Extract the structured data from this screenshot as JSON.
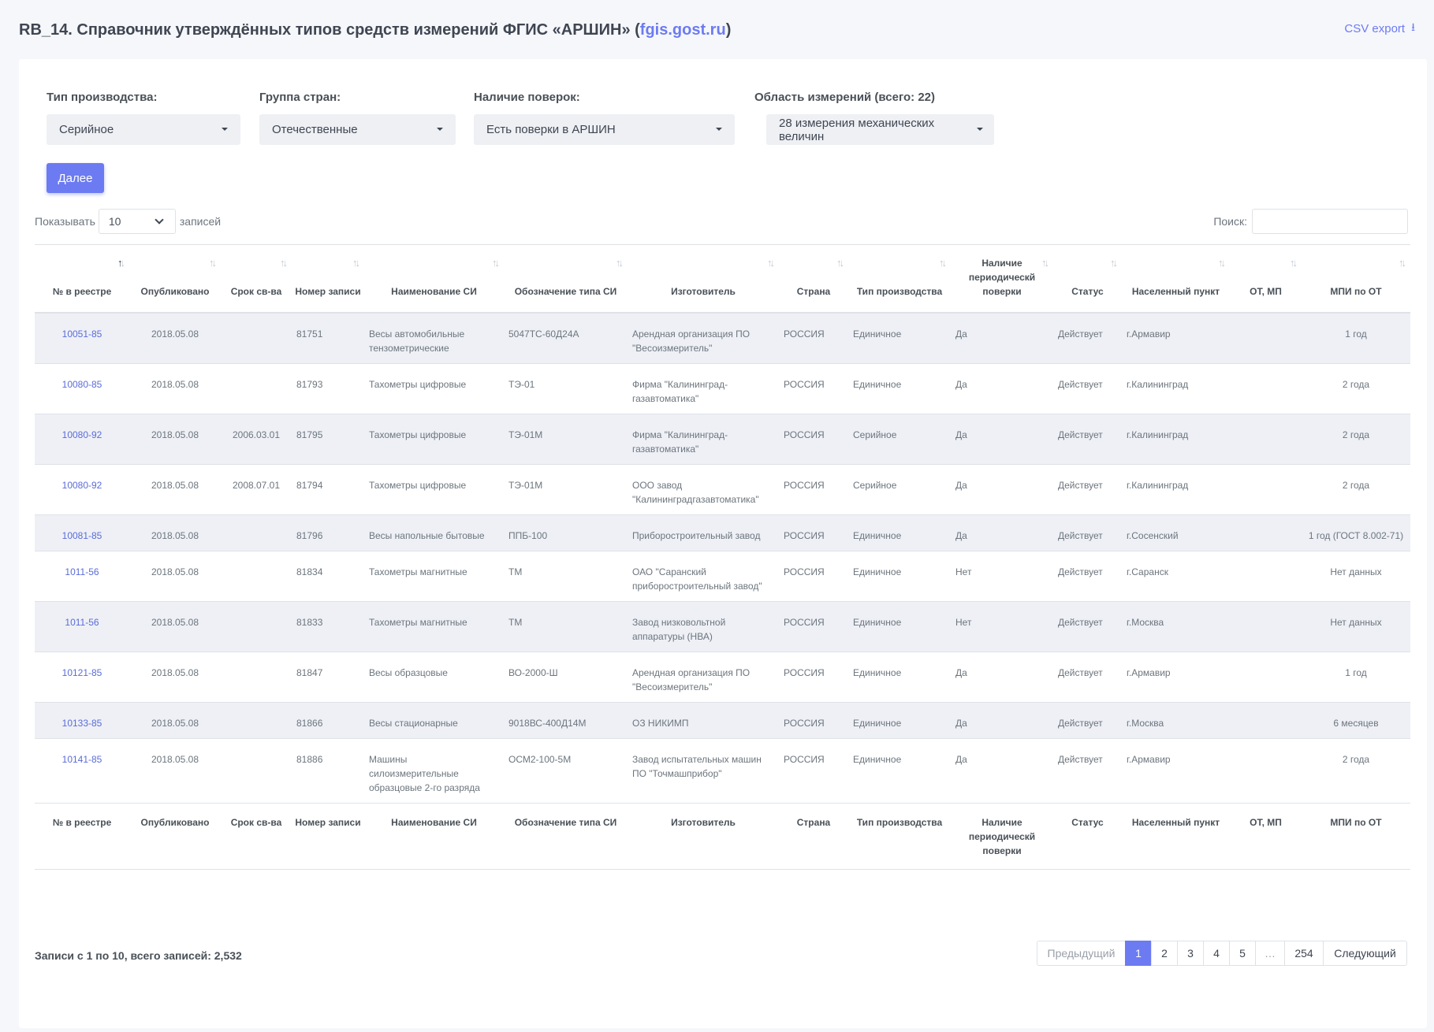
{
  "header": {
    "title_prefix": "RB_14. Справочник утверждённых типов средств измерений ФГИС «АРШИН» (",
    "title_link": "fgis.gost.ru",
    "title_suffix": ")",
    "csv_export": "CSV export",
    "csv_icon": "download-icon"
  },
  "filters": [
    {
      "label": "Тип производства:",
      "value": "Серийное"
    },
    {
      "label": "Группа стран:",
      "value": "Отечественные"
    },
    {
      "label": "Наличие поверок:",
      "value": "Есть поверки в АРШИН"
    },
    {
      "label": "Область измерений (всего: 22)",
      "value": "28 измерения механических величин"
    }
  ],
  "next_button": "Далее",
  "length": {
    "prefix": "Показывать",
    "value": "10",
    "suffix": "записей"
  },
  "search": {
    "label": "Поиск:",
    "placeholder": ""
  },
  "table": {
    "headers": [
      "№ в реестре",
      "Опубликовано",
      "Срок св-ва",
      "Номер записи",
      "Наименование СИ",
      "Обозначение типа СИ",
      "Изготовитель",
      "Страна",
      "Тип производства",
      "Наличие периодическй поверки",
      "Статус",
      "Населенный пункт",
      "ОТ, МП",
      "МПИ по ОТ"
    ],
    "footer": [
      "№ в реестре",
      "Опубликовано",
      "Срок св-ва",
      "Номер записи",
      "Наименование СИ",
      "Обозначение типа СИ",
      "Изготовитель",
      "Страна",
      "Тип производства",
      "Наличие периодическй поверки",
      "Статус",
      "Населенный пункт",
      "ОТ, МП",
      "МПИ по ОТ"
    ],
    "rows": [
      [
        "10051-85",
        "2018.05.08",
        "",
        "81751",
        "Весы автомобильные тензометрические",
        "5047ТС-60Д24А",
        "Арендная организация ПО \"Весоизмеритель\"",
        "РОССИЯ",
        "Единичное",
        "Да",
        "Действует",
        "г.Армавир",
        "",
        "1 год"
      ],
      [
        "10080-85",
        "2018.05.08",
        "",
        "81793",
        "Тахометры цифровые",
        "ТЭ-01",
        "Фирма \"Калининград-газавтоматика\"",
        "РОССИЯ",
        "Единичное",
        "Да",
        "Действует",
        "г.Калининград",
        "",
        "2 года"
      ],
      [
        "10080-92",
        "2018.05.08",
        "2006.03.01",
        "81795",
        "Тахометры цифровые",
        "ТЭ-01М",
        "Фирма \"Калининград-газавтоматика\"",
        "РОССИЯ",
        "Серийное",
        "Да",
        "Действует",
        "г.Калининград",
        "",
        "2 года"
      ],
      [
        "10080-92",
        "2018.05.08",
        "2008.07.01",
        "81794",
        "Тахометры цифровые",
        "ТЭ-01М",
        "ООО завод \"Калининградгазавтоматика\"",
        "РОССИЯ",
        "Серийное",
        "Да",
        "Действует",
        "г.Калининград",
        "",
        "2 года"
      ],
      [
        "10081-85",
        "2018.05.08",
        "",
        "81796",
        "Весы напольные бытовые",
        "ППБ-100",
        "Приборостроительный завод",
        "РОССИЯ",
        "Единичное",
        "Да",
        "Действует",
        "г.Сосенский",
        "",
        "1 год (ГОСТ 8.002-71)"
      ],
      [
        "1011-56",
        "2018.05.08",
        "",
        "81834",
        "Тахометры магнитные",
        "ТМ",
        "ОАО \"Саранский приборостроительный завод\"",
        "РОССИЯ",
        "Единичное",
        "Нет",
        "Действует",
        "г.Саранск",
        "",
        "Нет данных"
      ],
      [
        "1011-56",
        "2018.05.08",
        "",
        "81833",
        "Тахометры магнитные",
        "ТМ",
        "Завод низковольтной аппаратуры (НВА)",
        "РОССИЯ",
        "Единичное",
        "Нет",
        "Действует",
        "г.Москва",
        "",
        "Нет данных"
      ],
      [
        "10121-85",
        "2018.05.08",
        "",
        "81847",
        "Весы образцовые",
        "ВО-2000-Ш",
        "Арендная организация ПО \"Весоизмеритель\"",
        "РОССИЯ",
        "Единичное",
        "Да",
        "Действует",
        "г.Армавир",
        "",
        "1 год"
      ],
      [
        "10133-85",
        "2018.05.08",
        "",
        "81866",
        "Весы стационарные",
        "9018ВС-400Д14М",
        "ОЗ НИКИМП",
        "РОССИЯ",
        "Единичное",
        "Да",
        "Действует",
        "г.Москва",
        "",
        "6 месяцев"
      ],
      [
        "10141-85",
        "2018.05.08",
        "",
        "81886",
        "Машины силоизмерительные образцовые 2-го разряда",
        "ОСМ2-100-5М",
        "Завод испытательных машин ПО \"Точмашприбор\"",
        "РОССИЯ",
        "Единичное",
        "Да",
        "Действует",
        "г.Армавир",
        "",
        "2 года"
      ]
    ]
  },
  "info": "Записи с 1 по 10, всего записей: 2,532",
  "pagination": {
    "prev": "Предыдущий",
    "pages": [
      "1",
      "2",
      "3",
      "4",
      "5"
    ],
    "ellipsis": "…",
    "last": "254",
    "next": "Следующий"
  }
}
